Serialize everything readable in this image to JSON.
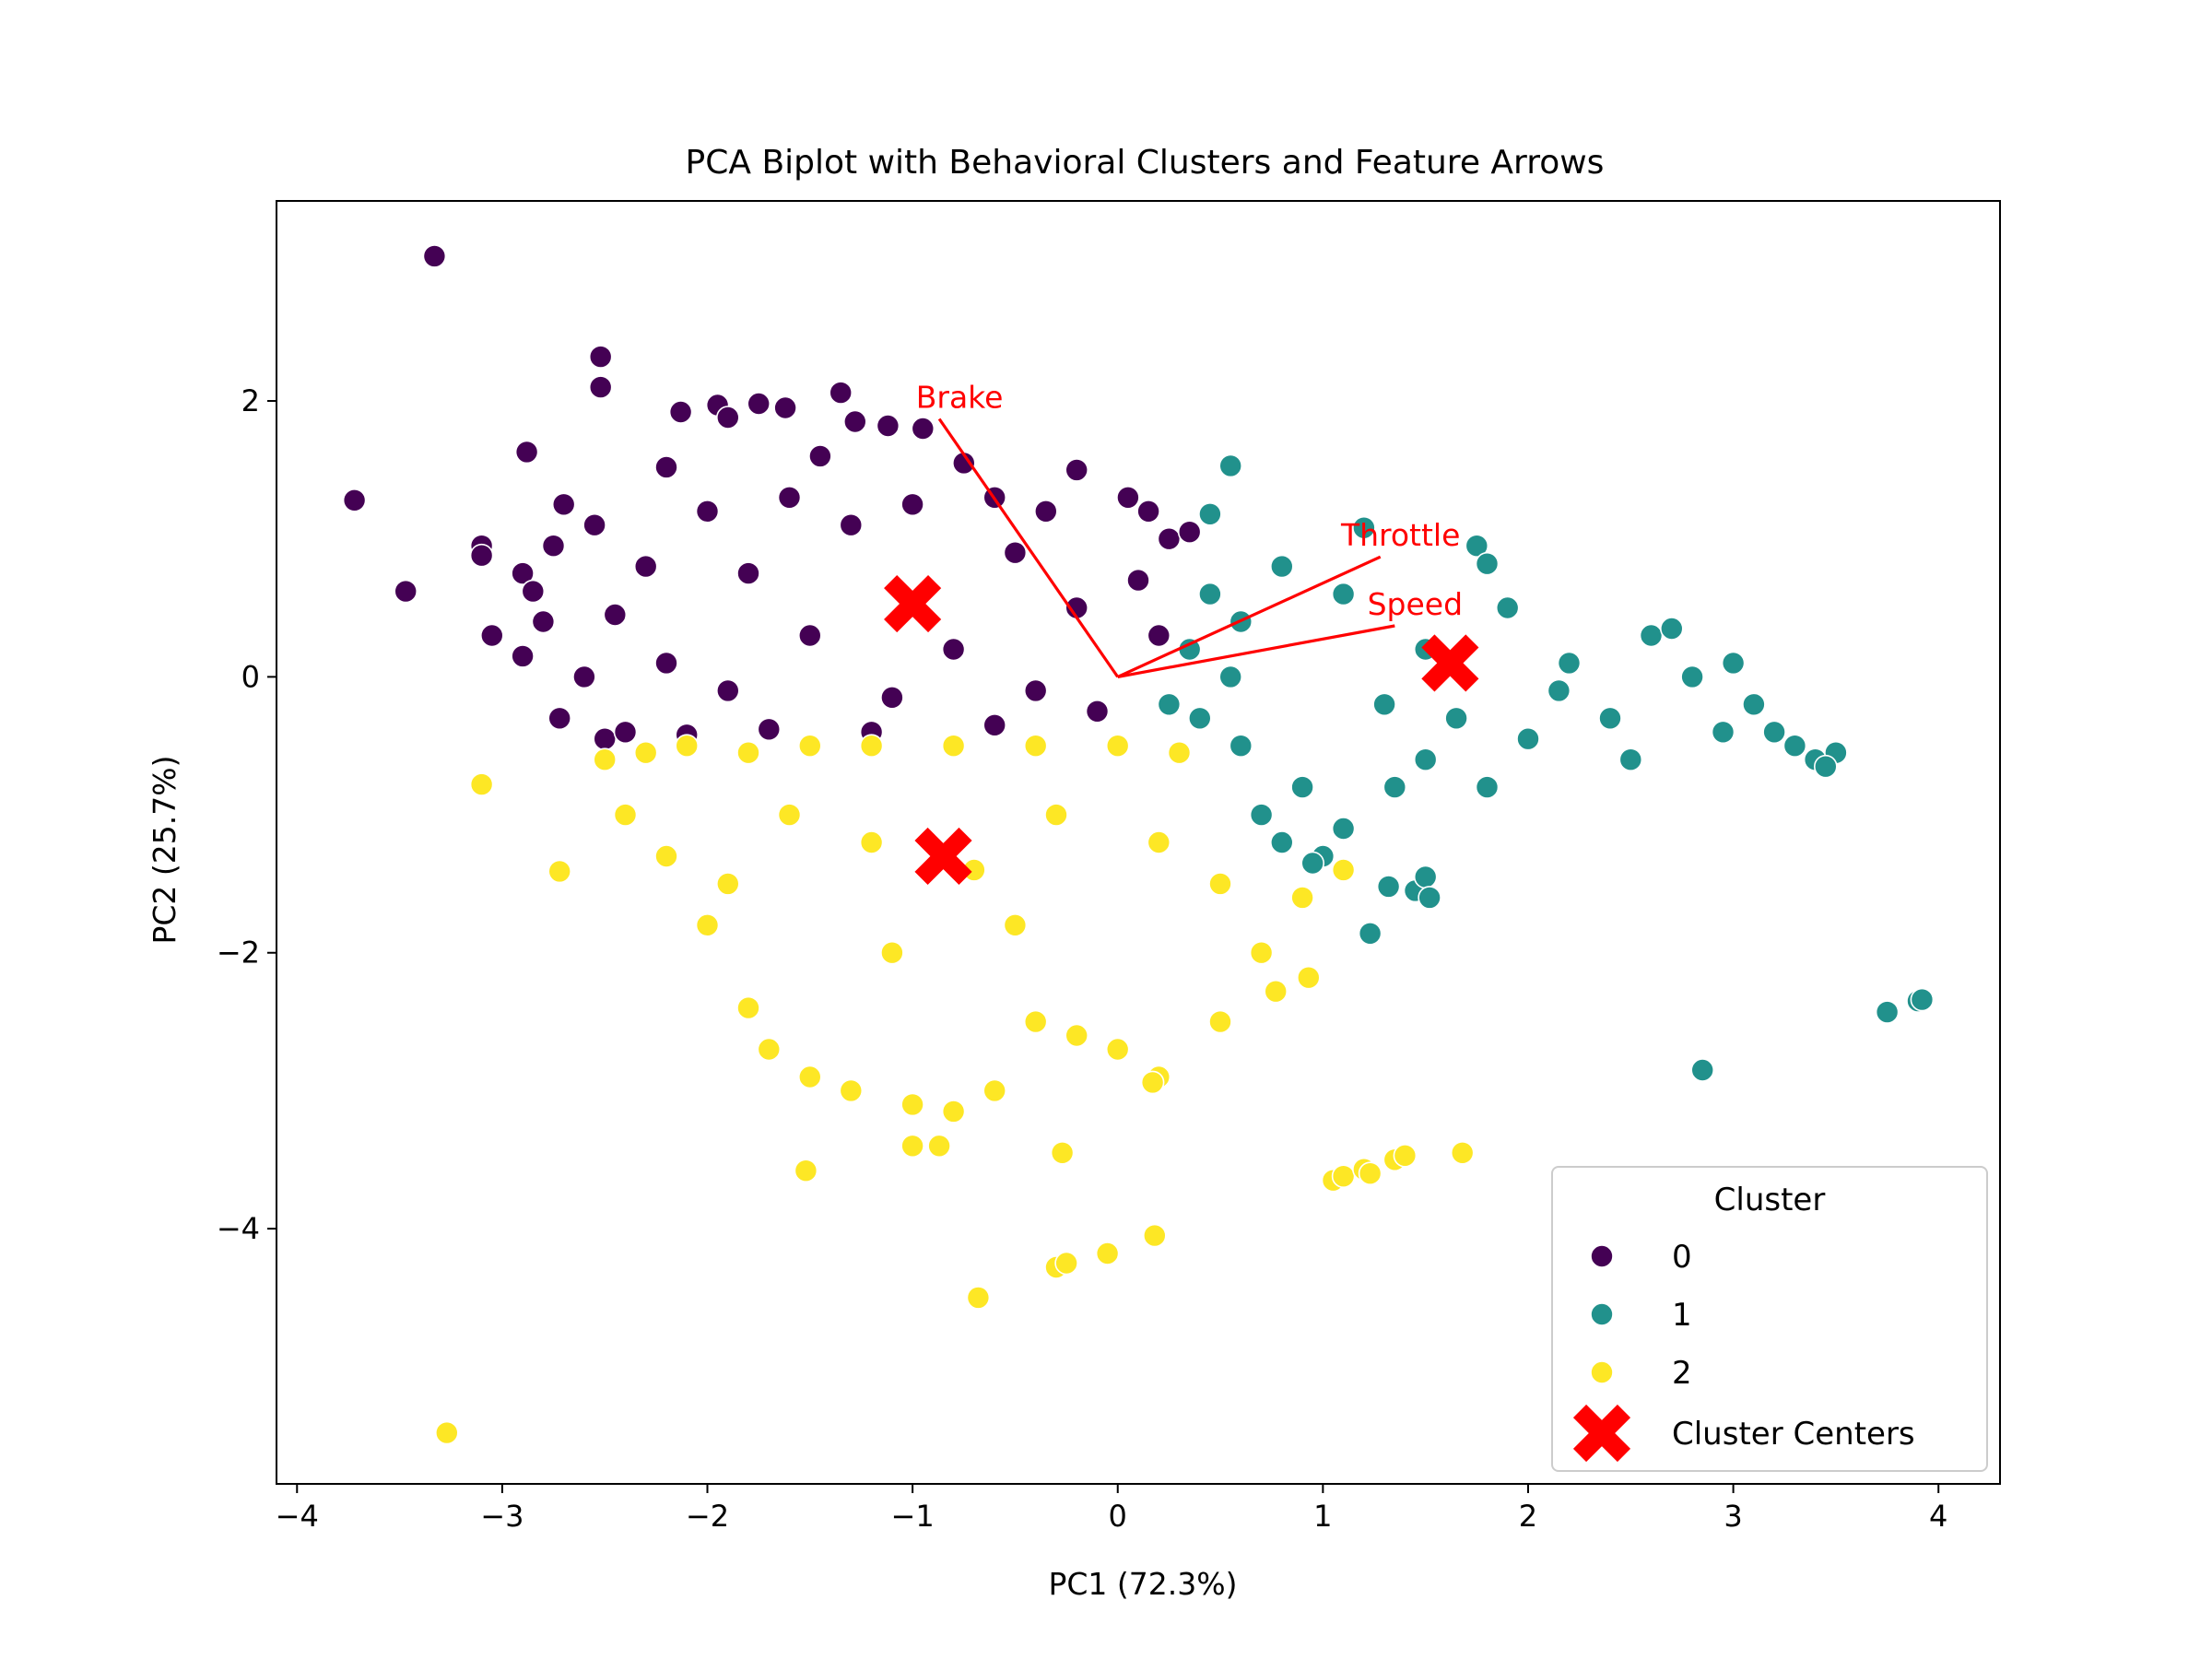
{
  "chart_data": {
    "type": "scatter",
    "title": "PCA Biplot with Behavioral Clusters and Feature Arrows",
    "xlabel": "PC1 (72.3%)",
    "ylabel": "PC2 (25.7%)",
    "xlim": [
      -4.1,
      4.3
    ],
    "ylim": [
      -5.85,
      3.45
    ],
    "xticks": [
      -4,
      -3,
      -2,
      -1,
      0,
      1,
      2,
      3,
      4
    ],
    "yticks": [
      -4,
      -2,
      0,
      2
    ],
    "grid": false,
    "legend": {
      "title": "Cluster",
      "placement": "bottom-right",
      "entries": [
        "0",
        "1",
        "2",
        "Cluster Centers"
      ]
    },
    "colors": {
      "cluster_0": "#440154",
      "cluster_1": "#21918c",
      "cluster_2": "#fde725",
      "centers": "#ff0000",
      "arrows": "#ff0000"
    },
    "series": [
      {
        "name": "0",
        "cluster": 0,
        "color": "#440154",
        "points": [
          [
            -3.33,
            3.05
          ],
          [
            -3.72,
            1.28
          ],
          [
            -3.47,
            0.62
          ],
          [
            -3.1,
            0.95
          ],
          [
            -3.1,
            0.88
          ],
          [
            -3.05,
            0.3
          ],
          [
            -2.88,
            1.63
          ],
          [
            -2.9,
            0.75
          ],
          [
            -2.85,
            0.62
          ],
          [
            -2.52,
            2.32
          ],
          [
            -2.52,
            2.1
          ],
          [
            -2.2,
            1.52
          ],
          [
            -2.13,
            1.92
          ],
          [
            -1.95,
            1.97
          ],
          [
            -1.9,
            1.88
          ],
          [
            -1.75,
            1.98
          ],
          [
            -1.62,
            1.95
          ],
          [
            -1.35,
            2.06
          ],
          [
            -1.28,
            1.85
          ],
          [
            -1.12,
            1.82
          ],
          [
            -0.95,
            1.8
          ],
          [
            -0.2,
            1.5
          ],
          [
            0.05,
            1.3
          ],
          [
            0.15,
            1.2
          ],
          [
            0.25,
            1.0
          ],
          [
            0.35,
            1.05
          ],
          [
            -2.7,
            1.25
          ],
          [
            -2.75,
            0.95
          ],
          [
            -2.72,
            -0.3
          ],
          [
            -2.5,
            -0.45
          ],
          [
            -2.4,
            -0.4
          ],
          [
            -2.1,
            -0.42
          ],
          [
            -1.7,
            -0.38
          ],
          [
            -1.2,
            -0.4
          ],
          [
            -0.6,
            -0.35
          ],
          [
            -0.1,
            -0.25
          ],
          [
            -2.45,
            0.45
          ],
          [
            -2.2,
            0.1
          ],
          [
            -1.8,
            0.75
          ],
          [
            -1.5,
            0.3
          ],
          [
            -1.3,
            1.1
          ],
          [
            -0.8,
            0.2
          ],
          [
            -0.5,
            0.9
          ],
          [
            -0.2,
            0.5
          ],
          [
            0.1,
            0.7
          ],
          [
            -2.0,
            1.2
          ],
          [
            -1.6,
            1.3
          ],
          [
            -1.0,
            1.25
          ],
          [
            -0.6,
            1.3
          ],
          [
            -2.3,
            0.8
          ],
          [
            -1.9,
            -0.1
          ],
          [
            -1.1,
            -0.15
          ],
          [
            -0.4,
            -0.1
          ],
          [
            0.2,
            0.3
          ],
          [
            -2.9,
            0.15
          ],
          [
            -2.8,
            0.4
          ],
          [
            -2.6,
            0.0
          ],
          [
            -2.55,
            1.1
          ],
          [
            -1.45,
            1.6
          ],
          [
            -0.75,
            1.55
          ],
          [
            -0.35,
            1.2
          ]
        ]
      },
      {
        "name": "1",
        "cluster": 1,
        "color": "#21918c",
        "points": [
          [
            0.55,
            1.53
          ],
          [
            0.45,
            1.18
          ],
          [
            1.2,
            1.08
          ],
          [
            1.75,
            0.95
          ],
          [
            1.8,
            0.82
          ],
          [
            0.45,
            0.6
          ],
          [
            0.35,
            0.2
          ],
          [
            0.4,
            -0.3
          ],
          [
            0.6,
            -0.5
          ],
          [
            0.9,
            -0.8
          ],
          [
            1.1,
            -1.1
          ],
          [
            0.7,
            -1.0
          ],
          [
            0.8,
            -1.2
          ],
          [
            1.0,
            -1.3
          ],
          [
            0.95,
            -1.35
          ],
          [
            1.35,
            -0.8
          ],
          [
            1.5,
            -0.6
          ],
          [
            1.8,
            -0.8
          ],
          [
            1.23,
            -1.86
          ],
          [
            1.32,
            -1.52
          ],
          [
            1.45,
            -1.55
          ],
          [
            1.5,
            -1.45
          ],
          [
            1.52,
            -1.6
          ],
          [
            2.6,
            0.3
          ],
          [
            2.7,
            0.35
          ],
          [
            3.0,
            0.1
          ],
          [
            3.1,
            -0.2
          ],
          [
            3.2,
            -0.4
          ],
          [
            3.3,
            -0.5
          ],
          [
            3.4,
            -0.6
          ],
          [
            3.5,
            -0.55
          ],
          [
            3.45,
            -0.65
          ],
          [
            2.5,
            -0.6
          ],
          [
            2.0,
            -0.45
          ],
          [
            2.2,
            0.1
          ],
          [
            1.9,
            0.5
          ],
          [
            1.5,
            0.2
          ],
          [
            1.1,
            0.6
          ],
          [
            0.8,
            0.8
          ],
          [
            0.6,
            0.4
          ],
          [
            1.3,
            -0.2
          ],
          [
            2.4,
            -0.3
          ],
          [
            2.8,
            0.0
          ],
          [
            3.75,
            -2.43
          ],
          [
            3.9,
            -2.35
          ],
          [
            3.92,
            -2.34
          ],
          [
            2.85,
            -2.85
          ],
          [
            0.25,
            -0.2
          ],
          [
            0.55,
            0.0
          ],
          [
            1.65,
            -0.3
          ],
          [
            2.15,
            -0.1
          ],
          [
            2.95,
            -0.4
          ]
        ]
      },
      {
        "name": "2",
        "cluster": 2,
        "color": "#fde725",
        "points": [
          [
            -3.1,
            -0.78
          ],
          [
            -2.72,
            -1.41
          ],
          [
            -3.27,
            -5.48
          ],
          [
            -2.5,
            -0.6
          ],
          [
            -2.3,
            -0.55
          ],
          [
            -2.1,
            -0.5
          ],
          [
            -1.8,
            -0.55
          ],
          [
            -1.5,
            -0.5
          ],
          [
            -1.2,
            -0.5
          ],
          [
            -0.8,
            -0.5
          ],
          [
            -0.4,
            -0.5
          ],
          [
            0.0,
            -0.5
          ],
          [
            0.3,
            -0.55
          ],
          [
            -2.4,
            -1.0
          ],
          [
            -2.2,
            -1.3
          ],
          [
            -2.0,
            -1.8
          ],
          [
            -1.8,
            -2.4
          ],
          [
            -1.7,
            -2.7
          ],
          [
            -1.5,
            -2.9
          ],
          [
            -1.3,
            -3.0
          ],
          [
            -1.0,
            -3.1
          ],
          [
            -0.8,
            -3.15
          ],
          [
            -0.6,
            -3.0
          ],
          [
            -0.4,
            -2.5
          ],
          [
            -0.2,
            -2.6
          ],
          [
            0.0,
            -2.7
          ],
          [
            0.2,
            -2.9
          ],
          [
            0.5,
            -2.5
          ],
          [
            0.7,
            -2.0
          ],
          [
            0.9,
            -1.6
          ],
          [
            1.1,
            -1.4
          ],
          [
            0.5,
            -1.5
          ],
          [
            0.2,
            -1.2
          ],
          [
            -0.3,
            -1.0
          ],
          [
            -0.7,
            -1.4
          ],
          [
            -1.2,
            -1.2
          ],
          [
            -1.6,
            -1.0
          ],
          [
            -1.9,
            -1.5
          ],
          [
            -1.1,
            -2.0
          ],
          [
            -0.5,
            -1.8
          ],
          [
            -1.52,
            -3.58
          ],
          [
            -1.0,
            -3.4
          ],
          [
            -0.87,
            -3.4
          ],
          [
            -0.27,
            -3.45
          ],
          [
            -0.3,
            -4.28
          ],
          [
            -0.25,
            -4.25
          ],
          [
            -0.05,
            -4.18
          ],
          [
            0.18,
            -4.05
          ],
          [
            -0.68,
            -4.5
          ],
          [
            1.05,
            -3.65
          ],
          [
            1.1,
            -3.62
          ],
          [
            1.2,
            -3.57
          ],
          [
            1.23,
            -3.6
          ],
          [
            1.35,
            -3.5
          ],
          [
            1.4,
            -3.47
          ],
          [
            1.68,
            -3.45
          ],
          [
            0.93,
            -2.18
          ],
          [
            0.77,
            -2.28
          ],
          [
            0.17,
            -2.94
          ]
        ]
      }
    ],
    "cluster_centers": [
      {
        "cluster": 0,
        "x": -1.0,
        "y": 0.53
      },
      {
        "cluster": 1,
        "x": 1.62,
        "y": 0.1
      },
      {
        "cluster": 2,
        "x": -0.85,
        "y": -1.3
      }
    ],
    "feature_arrows": [
      {
        "label": "Brake",
        "x": -0.87,
        "y": 1.87
      },
      {
        "label": "Throttle",
        "x": 1.28,
        "y": 0.87
      },
      {
        "label": "Speed",
        "x": 1.35,
        "y": 0.37
      }
    ]
  }
}
